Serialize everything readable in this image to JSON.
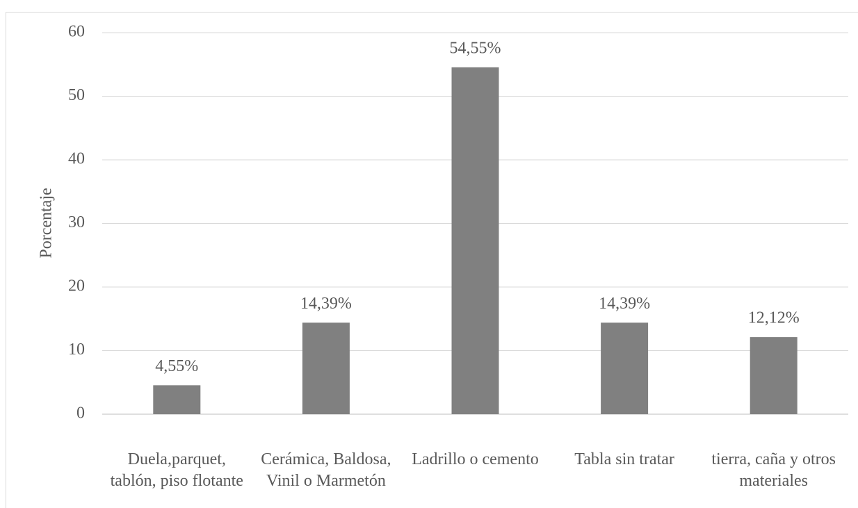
{
  "chart_data": {
    "type": "bar",
    "y_axis_label": "Porcentaje",
    "categories": [
      "Duela,parquet, tablón, piso flotante",
      "Cerámica, Baldosa, Vinil o Marmetón",
      "Ladrillo o cemento",
      "Tabla sin tratar",
      "tierra, caña y otros materiales"
    ],
    "values": [
      4.55,
      14.39,
      54.55,
      14.39,
      12.12
    ],
    "value_labels": [
      "4,55%",
      "14,39%",
      "54,55%",
      "14,39%",
      "12,12%"
    ],
    "color": "#808080",
    "ylim": [
      0,
      60
    ],
    "yticks": [
      0,
      10,
      20,
      30,
      40,
      50,
      60
    ],
    "grid": true
  }
}
